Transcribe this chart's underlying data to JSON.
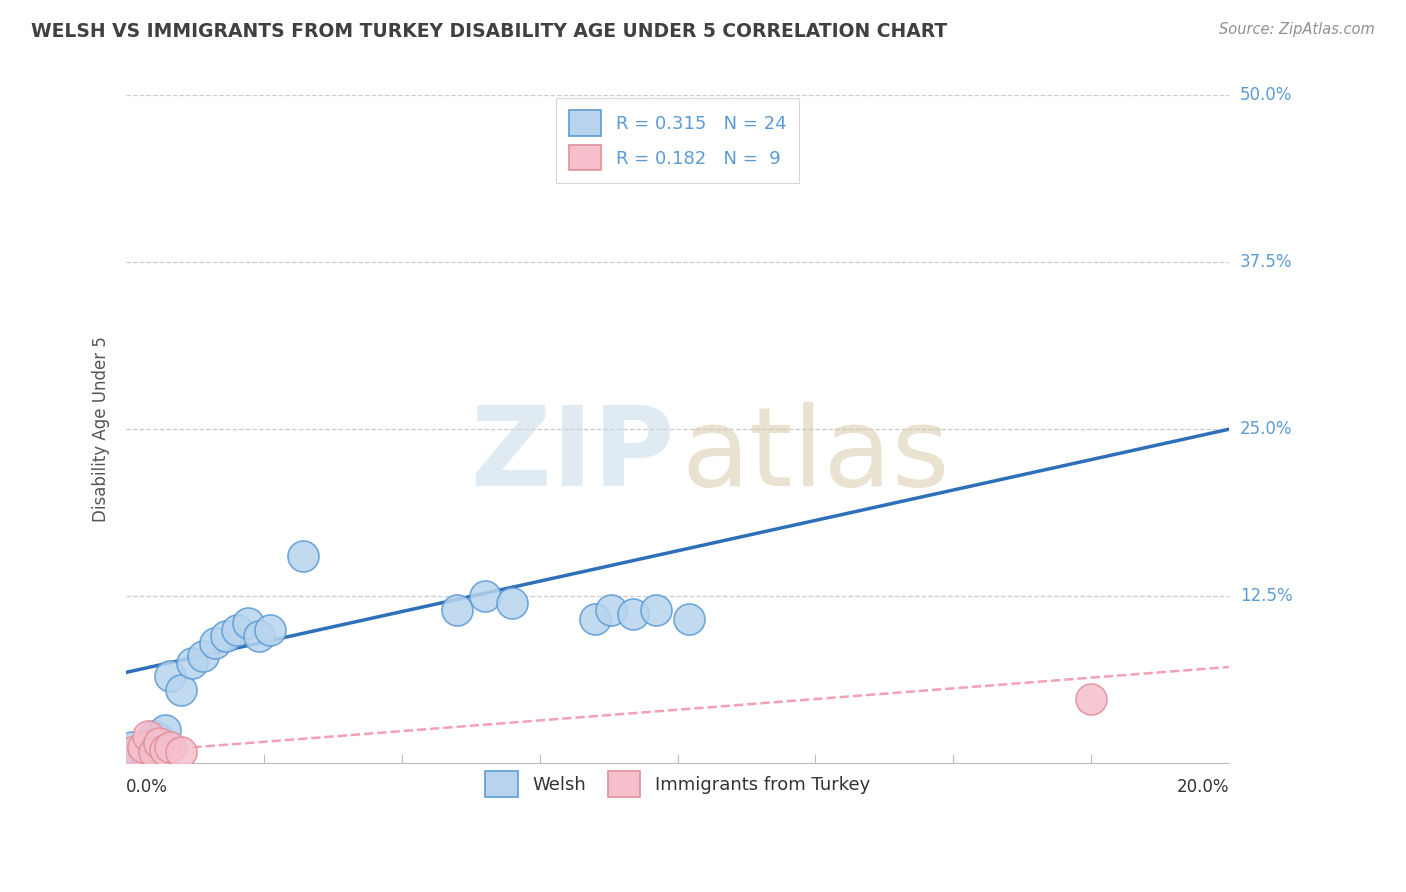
{
  "title": "WELSH VS IMMIGRANTS FROM TURKEY DISABILITY AGE UNDER 5 CORRELATION CHART",
  "source": "Source: ZipAtlas.com",
  "ylabel": "Disability Age Under 5",
  "xmin": 0.0,
  "xmax": 0.2,
  "ymin": 0.0,
  "ymax": 0.5,
  "welsh_R": 0.315,
  "welsh_N": 24,
  "turkey_R": 0.182,
  "turkey_N": 9,
  "welsh_color": "#b8d4ed",
  "welsh_edge_color": "#5b9bd5",
  "turkey_color": "#f5bfcc",
  "turkey_edge_color": "#e0909a",
  "welsh_line_color": "#2e6fba",
  "turkey_line_color": "#f4a0b4",
  "grid_yticks": [
    0.0,
    0.125,
    0.25,
    0.375,
    0.5
  ],
  "grid_ytick_labels": [
    "",
    "12.5%",
    "25.0%",
    "37.5%",
    "50.0%"
  ],
  "welsh_scatter_x": [
    0.001,
    0.003,
    0.005,
    0.006,
    0.007,
    0.008,
    0.01,
    0.012,
    0.014,
    0.016,
    0.018,
    0.02,
    0.022,
    0.024,
    0.026,
    0.032,
    0.06,
    0.065,
    0.07,
    0.085,
    0.088,
    0.092,
    0.096,
    0.102
  ],
  "welsh_scatter_y": [
    0.012,
    0.01,
    0.02,
    0.018,
    0.025,
    0.065,
    0.055,
    0.075,
    0.08,
    0.09,
    0.095,
    0.1,
    0.105,
    0.095,
    0.1,
    0.155,
    0.115,
    0.125,
    0.12,
    0.108,
    0.115,
    0.112,
    0.115,
    0.108
  ],
  "turkey_scatter_x": [
    0.001,
    0.003,
    0.004,
    0.005,
    0.006,
    0.007,
    0.008,
    0.01,
    0.175
  ],
  "turkey_scatter_y": [
    0.008,
    0.012,
    0.02,
    0.008,
    0.015,
    0.01,
    0.012,
    0.008,
    0.048
  ],
  "welsh_trendline_x0": 0.0,
  "welsh_trendline_y0": 0.068,
  "welsh_trendline_x1": 0.2,
  "welsh_trendline_y1": 0.25,
  "turkey_trendline_x0": 0.0,
  "turkey_trendline_y0": 0.008,
  "turkey_trendline_x1": 0.2,
  "turkey_trendline_y1": 0.072,
  "background_color": "#ffffff",
  "grid_color": "#cccccc",
  "title_color": "#404040",
  "source_color": "#909090",
  "legend_welsh_label": "Welsh",
  "legend_turkey_label": "Immigrants from Turkey"
}
